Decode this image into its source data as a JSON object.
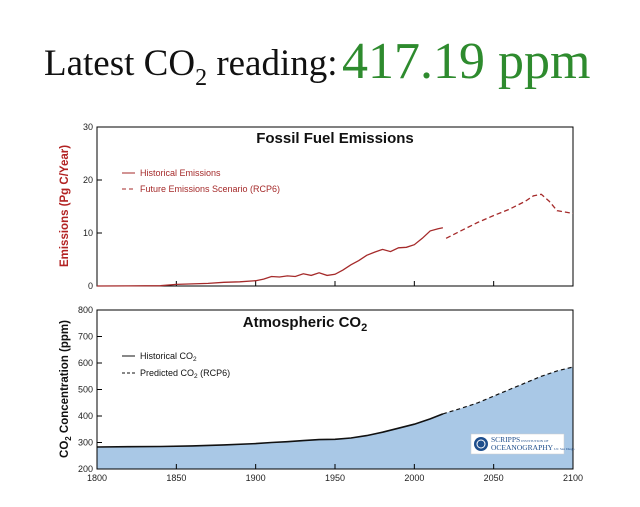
{
  "headline": {
    "label_pre": "Latest CO",
    "label_sub": "2",
    "label_post": " reading:",
    "value": "417.19 ppm",
    "value_color": "#2e8b2e"
  },
  "logo": {
    "line1": "SCRIPPS",
    "line1_small": "INSTITUTION OF",
    "line2": "OCEANOGRAPHY",
    "line2_small": "UC San Diego"
  },
  "chart_data": [
    {
      "type": "line",
      "title": "Fossil Fuel Emissions",
      "ylabel": "Emissions (Pg C/Year)",
      "ylabel_color": "#b22222",
      "xlim": [
        1800,
        2100
      ],
      "ylim": [
        0,
        30
      ],
      "yticks": [
        "0",
        "10",
        "20",
        "30"
      ],
      "legend_position": "top-left",
      "series": [
        {
          "name": "Historical Emissions",
          "style": "solid",
          "color": "#a52a2a",
          "x": [
            1800,
            1820,
            1840,
            1850,
            1860,
            1870,
            1880,
            1890,
            1900,
            1905,
            1910,
            1915,
            1920,
            1925,
            1930,
            1935,
            1940,
            1945,
            1950,
            1955,
            1960,
            1965,
            1970,
            1975,
            1980,
            1985,
            1990,
            1995,
            2000,
            2005,
            2010,
            2015,
            2018
          ],
          "y": [
            0.0,
            0.02,
            0.05,
            0.3,
            0.4,
            0.5,
            0.7,
            0.8,
            1.0,
            1.3,
            1.8,
            1.7,
            1.9,
            1.8,
            2.3,
            2.0,
            2.5,
            2.0,
            2.2,
            3.0,
            4.0,
            4.8,
            5.8,
            6.4,
            6.9,
            6.5,
            7.2,
            7.3,
            7.8,
            9.0,
            10.4,
            10.8,
            11.0
          ]
        },
        {
          "name": "Future Emissions Scenario (RCP6)",
          "style": "dashed",
          "color": "#a52a2a",
          "x": [
            2020,
            2030,
            2040,
            2050,
            2060,
            2070,
            2075,
            2080,
            2085,
            2090,
            2100
          ],
          "y": [
            9.0,
            10.5,
            12.0,
            13.3,
            14.5,
            16.0,
            17.0,
            17.3,
            16.0,
            14.2,
            13.7
          ]
        }
      ]
    },
    {
      "type": "area",
      "title_pre": "Atmospheric CO",
      "title_sub": "2",
      "ylabel_pre": "CO",
      "ylabel_sub": "2",
      "ylabel_post": " Concentration (ppm)",
      "xlim": [
        1800,
        2100
      ],
      "ylim": [
        200,
        800
      ],
      "xticks": [
        "1800",
        "1850",
        "1900",
        "1950",
        "2000",
        "2050",
        "2100"
      ],
      "yticks": [
        "200",
        "300",
        "400",
        "500",
        "600",
        "700",
        "800"
      ],
      "fill_color": "#a9c8e6",
      "legend_position": "top-left",
      "series": [
        {
          "name_pre": "Historical CO",
          "name_sub": "2",
          "name_post": "",
          "style": "solid",
          "color": "#111111",
          "x": [
            1800,
            1820,
            1840,
            1860,
            1880,
            1900,
            1910,
            1920,
            1930,
            1940,
            1950,
            1960,
            1970,
            1980,
            1990,
            2000,
            2010,
            2018
          ],
          "y": [
            283,
            284,
            285,
            287,
            291,
            296,
            300,
            303,
            307,
            311,
            312,
            317,
            326,
            339,
            354,
            369,
            389,
            408
          ]
        },
        {
          "name_pre": "Predicted CO",
          "name_sub": "2",
          "name_post": " (RCP6)",
          "style": "dashed",
          "color": "#111111",
          "x": [
            2018,
            2030,
            2040,
            2050,
            2060,
            2070,
            2080,
            2090,
            2100
          ],
          "y": [
            408,
            430,
            450,
            475,
            500,
            525,
            550,
            570,
            585
          ]
        }
      ]
    }
  ]
}
